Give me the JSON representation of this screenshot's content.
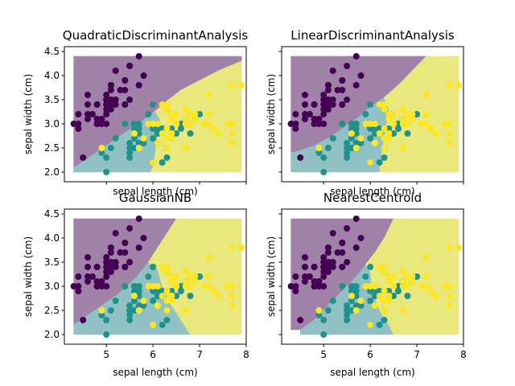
{
  "figure": {
    "background": "#ffffff"
  },
  "colors": {
    "class_0": "#440154",
    "class_1": "#21918c",
    "class_2": "#fde725",
    "region_0": "#a082a8",
    "region_1": "#90c2c5",
    "region_2": "#e8e87c"
  },
  "chart_data": [
    {
      "type": "scatter",
      "title": "QuadraticDiscriminantAnalysis",
      "xlabel": "sepal length (cm)",
      "ylabel": "sepal width (cm)",
      "xlim": [
        4.1,
        8.0
      ],
      "ylim": [
        1.8,
        4.6
      ],
      "xticks": [],
      "xtick_labels": [],
      "yticks": [
        2.0,
        2.5,
        3.0,
        3.5,
        4.0,
        4.5
      ],
      "ytick_labels": [
        "2.0",
        "2.5",
        "3.0",
        "3.5",
        "4.0",
        "4.5"
      ],
      "show_y_labels": true,
      "regions": [
        {
          "class": 0,
          "polygon": [
            [
              4.3,
              2.0
            ],
            [
              4.3,
              4.4
            ],
            [
              7.9,
              4.4
            ],
            [
              7.9,
              4.3
            ],
            [
              7.4,
              4.1
            ],
            [
              7.0,
              3.9
            ],
            [
              6.6,
              3.7
            ],
            [
              6.2,
              3.4
            ],
            [
              5.9,
              3.15
            ],
            [
              5.6,
              2.95
            ],
            [
              5.3,
              2.75
            ],
            [
              5.0,
              2.55
            ],
            [
              4.7,
              2.35
            ],
            [
              4.4,
              2.15
            ],
            [
              4.3,
              2.1
            ]
          ]
        },
        {
          "class": 1,
          "polygon": [
            [
              4.3,
              2.0
            ],
            [
              4.3,
              2.1
            ],
            [
              4.4,
              2.15
            ],
            [
              4.7,
              2.35
            ],
            [
              5.0,
              2.55
            ],
            [
              5.3,
              2.75
            ],
            [
              5.6,
              2.95
            ],
            [
              5.9,
              3.15
            ],
            [
              6.05,
              3.25
            ],
            [
              6.15,
              3.1
            ],
            [
              6.1,
              2.8
            ],
            [
              6.05,
              2.4
            ],
            [
              6.0,
              2.1
            ],
            [
              5.95,
              2.0
            ]
          ]
        },
        {
          "class": 2,
          "polygon": [
            [
              5.95,
              2.0
            ],
            [
              6.0,
              2.1
            ],
            [
              6.05,
              2.4
            ],
            [
              6.1,
              2.8
            ],
            [
              6.15,
              3.1
            ],
            [
              6.05,
              3.25
            ],
            [
              6.2,
              3.4
            ],
            [
              6.6,
              3.7
            ],
            [
              7.0,
              3.9
            ],
            [
              7.4,
              4.1
            ],
            [
              7.9,
              4.3
            ],
            [
              7.9,
              2.0
            ]
          ]
        }
      ]
    },
    {
      "type": "scatter",
      "title": "LinearDiscriminantAnalysis",
      "xlabel": "sepal length (cm)",
      "ylabel": "sepal width (cm)",
      "xlim": [
        4.1,
        8.0
      ],
      "ylim": [
        1.8,
        4.6
      ],
      "xticks": [],
      "xtick_labels": [],
      "yticks": [
        2.0,
        2.5,
        3.0,
        3.5,
        4.0,
        4.5
      ],
      "ytick_labels": [],
      "show_y_labels": false,
      "regions": [
        {
          "class": 0,
          "polygon": [
            [
              4.3,
              2.4
            ],
            [
              4.3,
              4.4
            ],
            [
              7.2,
              4.4
            ],
            [
              6.9,
              4.1
            ],
            [
              6.6,
              3.8
            ],
            [
              6.3,
              3.55
            ],
            [
              6.0,
              3.35
            ],
            [
              5.7,
              3.1
            ],
            [
              5.4,
              2.9
            ],
            [
              5.1,
              2.7
            ],
            [
              4.8,
              2.55
            ],
            [
              4.5,
              2.45
            ]
          ]
        },
        {
          "class": 1,
          "polygon": [
            [
              4.3,
              2.0
            ],
            [
              4.3,
              2.4
            ],
            [
              4.5,
              2.45
            ],
            [
              4.8,
              2.55
            ],
            [
              5.1,
              2.7
            ],
            [
              5.4,
              2.9
            ],
            [
              5.7,
              3.1
            ],
            [
              6.0,
              3.35
            ],
            [
              6.3,
              3.55
            ],
            [
              6.4,
              3.3
            ],
            [
              6.35,
              3.0
            ],
            [
              6.3,
              2.7
            ],
            [
              6.25,
              2.4
            ],
            [
              6.2,
              2.0
            ]
          ]
        },
        {
          "class": 2,
          "polygon": [
            [
              6.2,
              2.0
            ],
            [
              6.25,
              2.4
            ],
            [
              6.3,
              2.7
            ],
            [
              6.35,
              3.0
            ],
            [
              6.4,
              3.3
            ],
            [
              6.3,
              3.55
            ],
            [
              6.6,
              3.8
            ],
            [
              6.9,
              4.1
            ],
            [
              7.2,
              4.4
            ],
            [
              7.9,
              4.4
            ],
            [
              7.9,
              2.0
            ]
          ]
        }
      ]
    },
    {
      "type": "scatter",
      "title": "GaussianNB",
      "xlabel": "sepal length (cm)",
      "ylabel": "sepal width (cm)",
      "xlim": [
        4.1,
        8.0
      ],
      "ylim": [
        1.8,
        4.6
      ],
      "xticks": [
        5,
        6,
        7,
        8
      ],
      "xtick_labels": [
        "5",
        "6",
        "7",
        "8"
      ],
      "yticks": [
        2.0,
        2.5,
        3.0,
        3.5,
        4.0,
        4.5
      ],
      "ytick_labels": [
        "2.0",
        "2.5",
        "3.0",
        "3.5",
        "4.0",
        "4.5"
      ],
      "show_y_labels": true,
      "regions": [
        {
          "class": 0,
          "polygon": [
            [
              4.3,
              2.2
            ],
            [
              4.3,
              4.4
            ],
            [
              6.5,
              4.4
            ],
            [
              6.3,
              4.1
            ],
            [
              6.1,
              3.8
            ],
            [
              5.9,
              3.5
            ],
            [
              5.7,
              3.25
            ],
            [
              5.45,
              3.0
            ],
            [
              5.2,
              2.8
            ],
            [
              4.9,
              2.6
            ],
            [
              4.6,
              2.4
            ]
          ]
        },
        {
          "class": 1,
          "polygon": [
            [
              4.3,
              2.0
            ],
            [
              4.3,
              2.2
            ],
            [
              4.6,
              2.4
            ],
            [
              4.9,
              2.6
            ],
            [
              5.2,
              2.8
            ],
            [
              5.45,
              3.0
            ],
            [
              5.7,
              3.25
            ],
            [
              5.9,
              3.5
            ],
            [
              6.1,
              3.35
            ],
            [
              6.2,
              3.0
            ],
            [
              6.4,
              2.6
            ],
            [
              6.6,
              2.3
            ],
            [
              6.8,
              2.0
            ]
          ]
        },
        {
          "class": 2,
          "polygon": [
            [
              6.8,
              2.0
            ],
            [
              6.6,
              2.3
            ],
            [
              6.4,
              2.6
            ],
            [
              6.2,
              3.0
            ],
            [
              6.1,
              3.35
            ],
            [
              5.9,
              3.5
            ],
            [
              6.1,
              3.8
            ],
            [
              6.3,
              4.1
            ],
            [
              6.5,
              4.4
            ],
            [
              7.9,
              4.4
            ],
            [
              7.9,
              2.0
            ]
          ]
        }
      ]
    },
    {
      "type": "scatter",
      "title": "NearestCentroid",
      "xlabel": "sepal length (cm)",
      "ylabel": "sepal width (cm)",
      "xlim": [
        4.1,
        8.0
      ],
      "ylim": [
        1.8,
        4.6
      ],
      "xticks": [
        5,
        6,
        7,
        8
      ],
      "xtick_labels": [
        "5",
        "6",
        "7",
        "8"
      ],
      "yticks": [
        2.0,
        2.5,
        3.0,
        3.5,
        4.0,
        4.5
      ],
      "ytick_labels": [],
      "show_y_labels": false,
      "regions": [
        {
          "class": 0,
          "polygon": [
            [
              4.3,
              2.1
            ],
            [
              4.3,
              4.4
            ],
            [
              6.5,
              4.4
            ],
            [
              6.3,
              4.0
            ],
            [
              6.1,
              3.7
            ],
            [
              5.9,
              3.45
            ],
            [
              5.7,
              3.2
            ],
            [
              5.4,
              2.9
            ],
            [
              5.1,
              2.6
            ],
            [
              4.8,
              2.3
            ],
            [
              4.5,
              2.1
            ]
          ]
        },
        {
          "class": 1,
          "polygon": [
            [
              4.5,
              2.0
            ],
            [
              4.5,
              2.1
            ],
            [
              4.8,
              2.3
            ],
            [
              5.1,
              2.6
            ],
            [
              5.4,
              2.9
            ],
            [
              5.7,
              3.2
            ],
            [
              5.9,
              3.45
            ],
            [
              6.0,
              3.3
            ],
            [
              6.05,
              2.9
            ],
            [
              6.2,
              2.5
            ],
            [
              6.4,
              2.2
            ],
            [
              6.5,
              2.0
            ]
          ]
        },
        {
          "class": 2,
          "polygon": [
            [
              6.5,
              2.0
            ],
            [
              6.4,
              2.2
            ],
            [
              6.2,
              2.5
            ],
            [
              6.05,
              2.9
            ],
            [
              6.0,
              3.3
            ],
            [
              5.9,
              3.45
            ],
            [
              6.1,
              3.7
            ],
            [
              6.3,
              4.0
            ],
            [
              6.5,
              4.4
            ],
            [
              7.9,
              4.4
            ],
            [
              7.9,
              2.0
            ]
          ]
        }
      ]
    }
  ],
  "points": {
    "class_0": [
      [
        5.1,
        3.5
      ],
      [
        4.9,
        3.0
      ],
      [
        4.7,
        3.2
      ],
      [
        4.6,
        3.1
      ],
      [
        5.0,
        3.6
      ],
      [
        5.4,
        3.9
      ],
      [
        4.6,
        3.4
      ],
      [
        5.0,
        3.4
      ],
      [
        4.4,
        2.9
      ],
      [
        4.9,
        3.1
      ],
      [
        5.4,
        3.7
      ],
      [
        4.8,
        3.4
      ],
      [
        4.8,
        3.0
      ],
      [
        4.3,
        3.0
      ],
      [
        5.8,
        4.0
      ],
      [
        5.7,
        4.4
      ],
      [
        5.4,
        3.9
      ],
      [
        5.1,
        3.5
      ],
      [
        5.7,
        3.8
      ],
      [
        5.1,
        3.8
      ],
      [
        5.4,
        3.4
      ],
      [
        5.1,
        3.7
      ],
      [
        4.6,
        3.6
      ],
      [
        5.1,
        3.3
      ],
      [
        4.8,
        3.4
      ],
      [
        5.0,
        3.0
      ],
      [
        5.0,
        3.4
      ],
      [
        5.2,
        3.5
      ],
      [
        5.2,
        3.4
      ],
      [
        4.7,
        3.2
      ],
      [
        4.8,
        3.1
      ],
      [
        5.4,
        3.4
      ],
      [
        5.2,
        4.1
      ],
      [
        5.5,
        4.2
      ],
      [
        4.9,
        3.1
      ],
      [
        5.0,
        3.2
      ],
      [
        5.5,
        3.5
      ],
      [
        4.4,
        3.0
      ],
      [
        5.1,
        3.4
      ],
      [
        5.0,
        3.5
      ],
      [
        4.5,
        2.3
      ],
      [
        4.4,
        3.2
      ],
      [
        5.0,
        3.5
      ],
      [
        5.1,
        3.8
      ],
      [
        4.8,
        3.0
      ],
      [
        5.1,
        3.8
      ],
      [
        4.6,
        3.2
      ],
      [
        5.3,
        3.7
      ],
      [
        5.0,
        3.3
      ]
    ],
    "class_1": [
      [
        7.0,
        3.2
      ],
      [
        6.4,
        3.2
      ],
      [
        6.9,
        3.1
      ],
      [
        5.5,
        2.3
      ],
      [
        6.5,
        2.8
      ],
      [
        5.7,
        2.8
      ],
      [
        6.3,
        3.3
      ],
      [
        4.9,
        2.4
      ],
      [
        6.6,
        2.9
      ],
      [
        5.2,
        2.7
      ],
      [
        5.0,
        2.0
      ],
      [
        5.9,
        3.0
      ],
      [
        6.0,
        2.2
      ],
      [
        6.1,
        2.9
      ],
      [
        5.6,
        2.9
      ],
      [
        6.7,
        3.1
      ],
      [
        5.6,
        3.0
      ],
      [
        5.8,
        2.7
      ],
      [
        6.2,
        2.2
      ],
      [
        5.6,
        2.5
      ],
      [
        5.9,
        3.2
      ],
      [
        6.1,
        2.8
      ],
      [
        6.3,
        2.5
      ],
      [
        6.1,
        2.8
      ],
      [
        6.4,
        2.9
      ],
      [
        6.6,
        3.0
      ],
      [
        6.8,
        2.8
      ],
      [
        6.7,
        3.0
      ],
      [
        6.0,
        2.9
      ],
      [
        5.7,
        2.6
      ],
      [
        5.5,
        2.4
      ],
      [
        5.8,
        2.7
      ],
      [
        6.0,
        2.7
      ],
      [
        5.4,
        3.0
      ],
      [
        6.0,
        3.4
      ],
      [
        6.7,
        3.1
      ],
      [
        6.3,
        2.3
      ],
      [
        5.6,
        3.0
      ],
      [
        5.5,
        2.5
      ],
      [
        5.5,
        2.6
      ],
      [
        6.1,
        3.0
      ],
      [
        5.8,
        2.6
      ],
      [
        5.0,
        2.3
      ],
      [
        5.6,
        2.7
      ],
      [
        5.7,
        3.0
      ],
      [
        5.7,
        2.9
      ],
      [
        6.2,
        2.9
      ],
      [
        5.1,
        2.5
      ]
    ],
    "class_2": [
      [
        6.3,
        3.3
      ],
      [
        5.8,
        2.7
      ],
      [
        7.1,
        3.0
      ],
      [
        6.3,
        2.9
      ],
      [
        6.5,
        3.0
      ],
      [
        7.6,
        3.0
      ],
      [
        4.9,
        2.5
      ],
      [
        7.3,
        2.9
      ],
      [
        6.7,
        2.5
      ],
      [
        7.2,
        3.6
      ],
      [
        6.5,
        3.2
      ],
      [
        6.4,
        2.7
      ],
      [
        6.8,
        3.0
      ],
      [
        5.7,
        2.5
      ],
      [
        6.4,
        3.2
      ],
      [
        6.5,
        3.0
      ],
      [
        7.7,
        3.8
      ],
      [
        7.7,
        2.6
      ],
      [
        6.0,
        2.2
      ],
      [
        6.9,
        3.2
      ],
      [
        5.6,
        2.8
      ],
      [
        7.7,
        2.8
      ],
      [
        6.3,
        2.7
      ],
      [
        6.7,
        3.3
      ],
      [
        7.2,
        3.2
      ],
      [
        6.2,
        2.8
      ],
      [
        6.1,
        3.0
      ],
      [
        6.4,
        2.8
      ],
      [
        7.2,
        3.0
      ],
      [
        7.4,
        2.8
      ],
      [
        7.9,
        3.8
      ],
      [
        6.4,
        2.8
      ],
      [
        6.1,
        2.6
      ],
      [
        7.7,
        3.0
      ],
      [
        6.3,
        3.4
      ],
      [
        6.4,
        3.1
      ],
      [
        6.0,
        3.0
      ],
      [
        6.9,
        3.1
      ],
      [
        6.7,
        3.1
      ],
      [
        6.9,
        3.1
      ],
      [
        6.8,
        3.2
      ],
      [
        6.7,
        3.3
      ],
      [
        6.7,
        3.0
      ],
      [
        6.3,
        2.5
      ],
      [
        6.5,
        3.0
      ],
      [
        6.2,
        3.4
      ],
      [
        5.9,
        3.0
      ]
    ]
  }
}
